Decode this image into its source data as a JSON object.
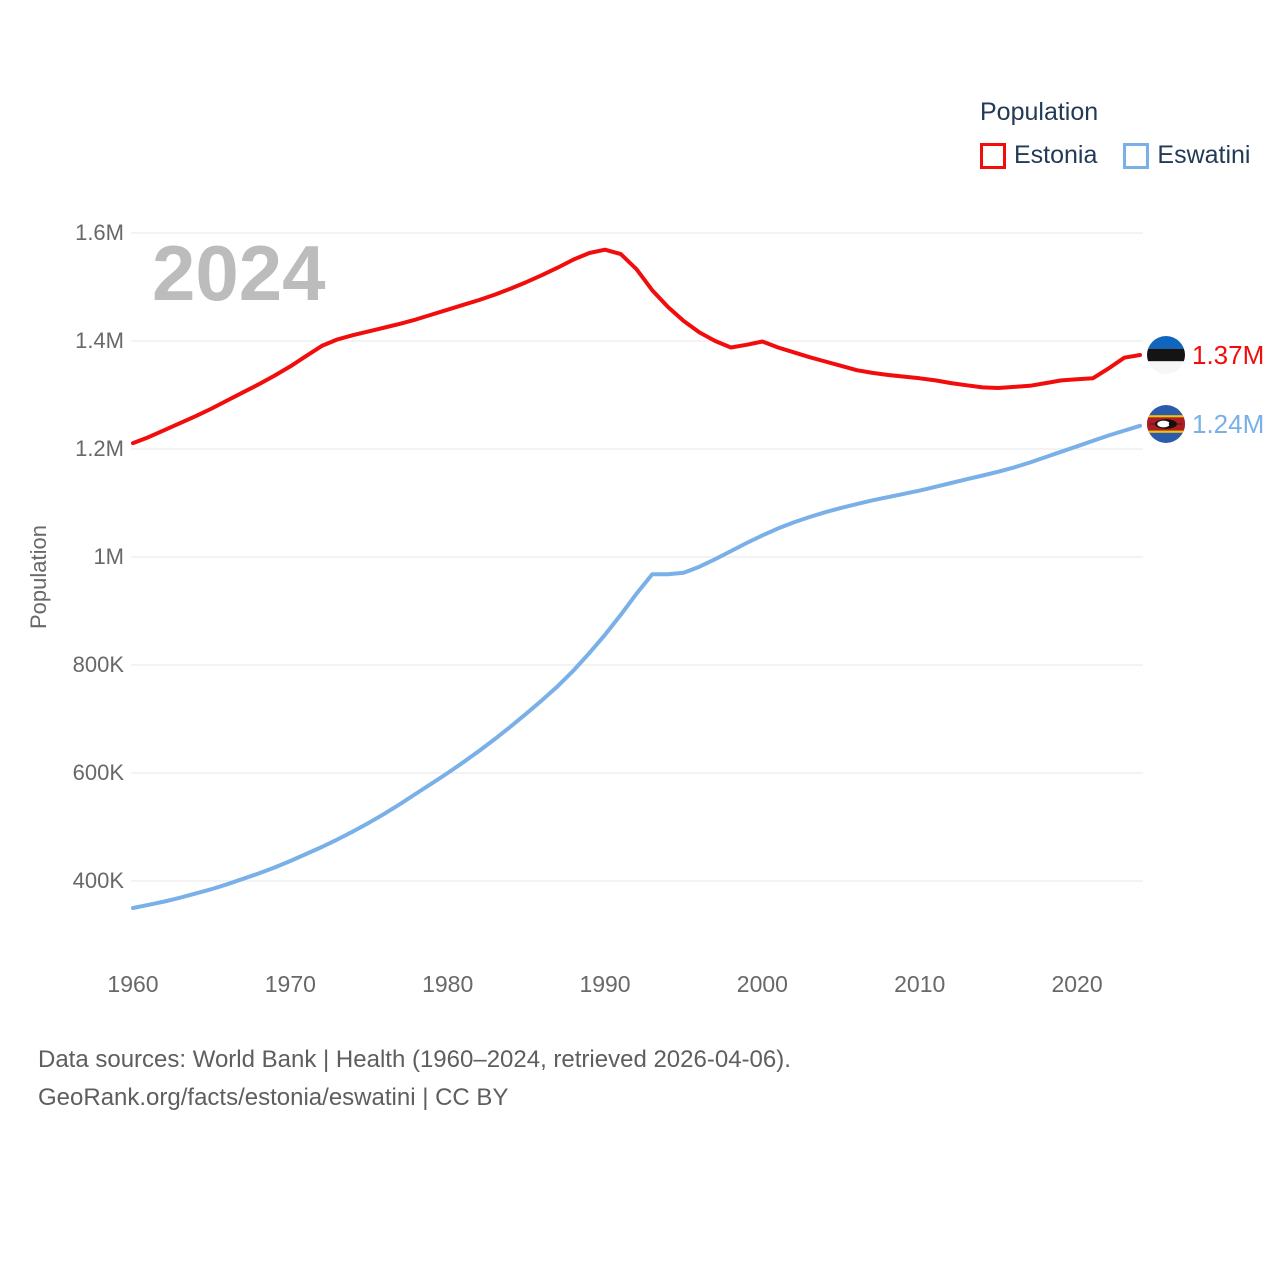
{
  "legend": {
    "title": "Population",
    "items": [
      {
        "label": "Estonia",
        "color": "#f20d0d"
      },
      {
        "label": "Eswatini",
        "color": "#79b0e8"
      }
    ]
  },
  "chart": {
    "watermark": "2024",
    "y_axis_title": "Population"
  },
  "chart_data": {
    "type": "line",
    "title": "Population",
    "xlabel": "",
    "ylabel": "Population",
    "x_range": [
      1960,
      2024
    ],
    "ylim": [
      300000,
      1600000
    ],
    "grid": "horizontal",
    "legend_position": "top-right",
    "y_ticks": [
      {
        "value": 1600000,
        "label": "1.6M"
      },
      {
        "value": 1400000,
        "label": "1.4M"
      },
      {
        "value": 1200000,
        "label": "1.2M"
      },
      {
        "value": 1000000,
        "label": "1M"
      },
      {
        "value": 800000,
        "label": "800K"
      },
      {
        "value": 600000,
        "label": "600K"
      },
      {
        "value": 400000,
        "label": "400K"
      }
    ],
    "x_ticks": [
      1960,
      1970,
      1980,
      1990,
      2000,
      2010,
      2020
    ],
    "series": [
      {
        "name": "Estonia",
        "color": "#f20d0d",
        "end_label": "1.37M",
        "flag": "estonia",
        "points": [
          [
            1960,
            1211000
          ],
          [
            1961,
            1222000
          ],
          [
            1962,
            1235000
          ],
          [
            1963,
            1248000
          ],
          [
            1964,
            1261000
          ],
          [
            1965,
            1275000
          ],
          [
            1966,
            1290000
          ],
          [
            1967,
            1305000
          ],
          [
            1968,
            1320000
          ],
          [
            1969,
            1336000
          ],
          [
            1970,
            1353000
          ],
          [
            1971,
            1372000
          ],
          [
            1972,
            1391000
          ],
          [
            1973,
            1403000
          ],
          [
            1974,
            1411000
          ],
          [
            1975,
            1418000
          ],
          [
            1976,
            1425000
          ],
          [
            1977,
            1432000
          ],
          [
            1978,
            1440000
          ],
          [
            1979,
            1449000
          ],
          [
            1980,
            1458000
          ],
          [
            1981,
            1467000
          ],
          [
            1982,
            1476000
          ],
          [
            1983,
            1486000
          ],
          [
            1984,
            1497000
          ],
          [
            1985,
            1509000
          ],
          [
            1986,
            1522000
          ],
          [
            1987,
            1536000
          ],
          [
            1988,
            1551000
          ],
          [
            1989,
            1563000
          ],
          [
            1990,
            1569000
          ],
          [
            1991,
            1561000
          ],
          [
            1992,
            1533000
          ],
          [
            1993,
            1494000
          ],
          [
            1994,
            1463000
          ],
          [
            1995,
            1437000
          ],
          [
            1996,
            1416000
          ],
          [
            1997,
            1400000
          ],
          [
            1998,
            1388000
          ],
          [
            1999,
            1393000
          ],
          [
            2000,
            1399000
          ],
          [
            2001,
            1388000
          ],
          [
            2002,
            1379000
          ],
          [
            2003,
            1370000
          ],
          [
            2004,
            1362000
          ],
          [
            2005,
            1354000
          ],
          [
            2006,
            1346000
          ],
          [
            2007,
            1341000
          ],
          [
            2008,
            1337000
          ],
          [
            2009,
            1334000
          ],
          [
            2010,
            1331000
          ],
          [
            2011,
            1327000
          ],
          [
            2012,
            1322000
          ],
          [
            2013,
            1318000
          ],
          [
            2014,
            1314000
          ],
          [
            2015,
            1313000
          ],
          [
            2016,
            1315000
          ],
          [
            2017,
            1317000
          ],
          [
            2018,
            1322000
          ],
          [
            2019,
            1327000
          ],
          [
            2020,
            1329000
          ],
          [
            2021,
            1331000
          ],
          [
            2022,
            1349000
          ],
          [
            2023,
            1369000
          ],
          [
            2024,
            1374000
          ]
        ]
      },
      {
        "name": "Eswatini",
        "color": "#79b0e8",
        "end_label": "1.24M",
        "flag": "eswatini",
        "points": [
          [
            1960,
            350000
          ],
          [
            1961,
            356000
          ],
          [
            1962,
            362000
          ],
          [
            1963,
            369000
          ],
          [
            1964,
            377000
          ],
          [
            1965,
            385000
          ],
          [
            1966,
            394000
          ],
          [
            1967,
            404000
          ],
          [
            1968,
            414000
          ],
          [
            1969,
            425000
          ],
          [
            1970,
            437000
          ],
          [
            1971,
            450000
          ],
          [
            1972,
            463000
          ],
          [
            1973,
            477000
          ],
          [
            1974,
            492000
          ],
          [
            1975,
            508000
          ],
          [
            1976,
            525000
          ],
          [
            1977,
            543000
          ],
          [
            1978,
            562000
          ],
          [
            1979,
            581000
          ],
          [
            1980,
            600000
          ],
          [
            1981,
            620000
          ],
          [
            1982,
            641000
          ],
          [
            1983,
            663000
          ],
          [
            1984,
            686000
          ],
          [
            1985,
            710000
          ],
          [
            1986,
            735000
          ],
          [
            1987,
            761000
          ],
          [
            1988,
            790000
          ],
          [
            1989,
            822000
          ],
          [
            1990,
            856000
          ],
          [
            1991,
            893000
          ],
          [
            1992,
            932000
          ],
          [
            1993,
            968000
          ],
          [
            1994,
            968000
          ],
          [
            1995,
            971000
          ],
          [
            1996,
            982000
          ],
          [
            1997,
            996000
          ],
          [
            1998,
            1011000
          ],
          [
            1999,
            1026000
          ],
          [
            2000,
            1040000
          ],
          [
            2001,
            1053000
          ],
          [
            2002,
            1064000
          ],
          [
            2003,
            1074000
          ],
          [
            2004,
            1083000
          ],
          [
            2005,
            1091000
          ],
          [
            2006,
            1098000
          ],
          [
            2007,
            1105000
          ],
          [
            2008,
            1111000
          ],
          [
            2009,
            1117000
          ],
          [
            2010,
            1123000
          ],
          [
            2011,
            1130000
          ],
          [
            2012,
            1137000
          ],
          [
            2013,
            1144000
          ],
          [
            2014,
            1151000
          ],
          [
            2015,
            1158000
          ],
          [
            2016,
            1166000
          ],
          [
            2017,
            1175000
          ],
          [
            2018,
            1185000
          ],
          [
            2019,
            1195000
          ],
          [
            2020,
            1205000
          ],
          [
            2021,
            1215000
          ],
          [
            2022,
            1225000
          ],
          [
            2023,
            1234000
          ],
          [
            2024,
            1243000
          ]
        ]
      }
    ]
  },
  "footer": {
    "line1": "Data sources: World Bank | Health (1960–2024, retrieved 2026-04-06).",
    "line2": "GeoRank.org/facts/estonia/eswatini | CC BY"
  }
}
